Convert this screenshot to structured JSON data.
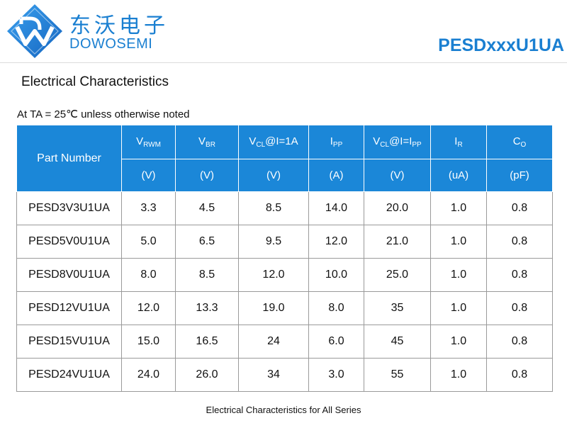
{
  "brand": {
    "name_cn": "东沃电子",
    "name_en": "DOWOSEMI",
    "colors": {
      "primary": "#1a7fd1",
      "header_fill": "#1b87d8"
    }
  },
  "model": "PESDxxxU1UA",
  "section_title": "Electrical Characteristics",
  "condition": "At TA = 25℃  unless otherwise noted",
  "table": {
    "part_header": "Part Number",
    "columns": [
      {
        "main": "V",
        "sub": "RWM",
        "tail": "",
        "unit": "(V)"
      },
      {
        "main": "V",
        "sub": "BR",
        "tail": "",
        "unit": "(V)"
      },
      {
        "main": "V",
        "sub": "CL",
        "tail": "@I=1A",
        "unit": "(V)"
      },
      {
        "main": "I",
        "sub": "PP",
        "tail": "",
        "unit": "(A)"
      },
      {
        "main": "V",
        "sub": "CL",
        "tail": "@I=I",
        "sub2": "PP",
        "unit": "(V)"
      },
      {
        "main": "I",
        "sub": "R",
        "tail": "",
        "unit": "(uA)"
      },
      {
        "main": "C",
        "sub": "O",
        "tail": "",
        "unit": "(pF)"
      }
    ],
    "rows": [
      {
        "part": "PESD3V3U1UA",
        "values": [
          "3.3",
          "4.5",
          "8.5",
          "14.0",
          "20.0",
          "1.0",
          "0.8"
        ]
      },
      {
        "part": "PESD5V0U1UA",
        "values": [
          "5.0",
          "6.5",
          "9.5",
          "12.0",
          "21.0",
          "1.0",
          "0.8"
        ]
      },
      {
        "part": "PESD8V0U1UA",
        "values": [
          "8.0",
          "8.5",
          "12.0",
          "10.0",
          "25.0",
          "1.0",
          "0.8"
        ]
      },
      {
        "part": "PESD12VU1UA",
        "values": [
          "12.0",
          "13.3",
          "19.0",
          "8.0",
          "35",
          "1.0",
          "0.8"
        ]
      },
      {
        "part": "PESD15VU1UA",
        "values": [
          "15.0",
          "16.5",
          "24",
          "6.0",
          "45",
          "1.0",
          "0.8"
        ]
      },
      {
        "part": "PESD24VU1UA",
        "values": [
          "24.0",
          "26.0",
          "34",
          "3.0",
          "55",
          "1.0",
          "0.8"
        ]
      }
    ]
  },
  "caption": "Electrical Characteristics for All Series"
}
